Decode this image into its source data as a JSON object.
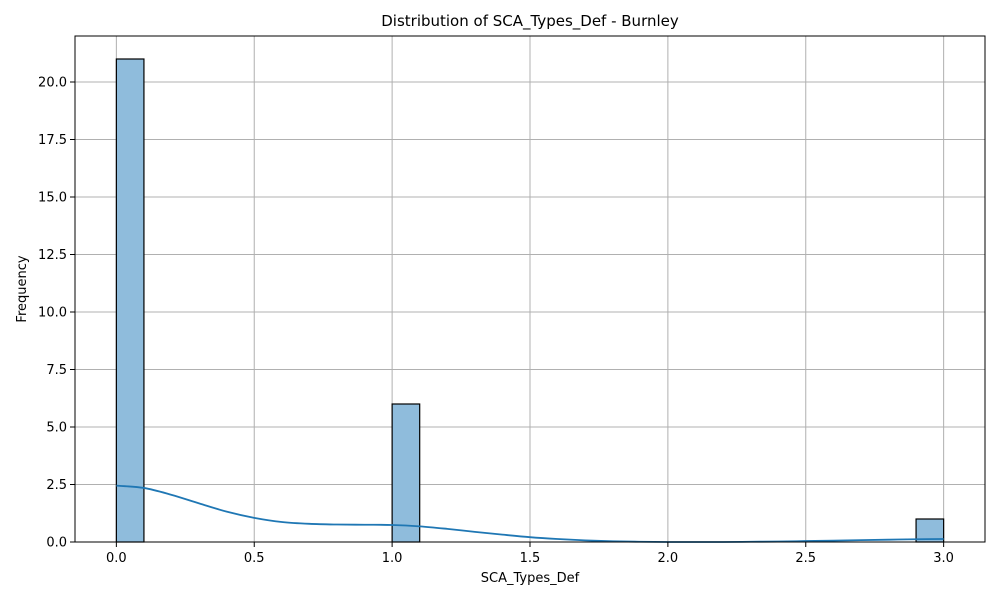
{
  "chart_data": {
    "type": "bar",
    "title": "Distribution of SCA_Types_Def - Burnley",
    "xlabel": "SCA_Types_Def",
    "ylabel": "Frequency",
    "xlim": [
      -0.15,
      3.15
    ],
    "ylim": [
      0,
      22
    ],
    "grid": true,
    "x_ticks": [
      0.0,
      0.5,
      1.0,
      1.5,
      2.0,
      2.5,
      3.0
    ],
    "x_tick_labels": [
      "0.0",
      "0.5",
      "1.0",
      "1.5",
      "2.0",
      "2.5",
      "3.0"
    ],
    "y_ticks": [
      0.0,
      2.5,
      5.0,
      7.5,
      10.0,
      12.5,
      15.0,
      17.5,
      20.0
    ],
    "y_tick_labels": [
      "0.0",
      "2.5",
      "5.0",
      "7.5",
      "10.0",
      "12.5",
      "15.0",
      "17.5",
      "20.0"
    ],
    "bins": [
      {
        "x0": 0.0,
        "x1": 0.1,
        "count": 21
      },
      {
        "x0": 1.0,
        "x1": 1.1,
        "count": 6
      },
      {
        "x0": 2.9,
        "x1": 3.0,
        "count": 1
      }
    ],
    "kde": {
      "x": [
        0.0,
        0.1,
        0.2,
        0.3,
        0.4,
        0.5,
        0.6,
        0.7,
        0.8,
        0.9,
        1.0,
        1.1,
        1.2,
        1.3,
        1.4,
        1.5,
        1.6,
        1.7,
        1.8,
        1.9,
        2.0,
        2.1,
        2.2,
        2.3,
        2.4,
        2.5,
        2.6,
        2.7,
        2.8,
        2.9,
        3.0
      ],
      "y": [
        2.45,
        2.35,
        2.05,
        1.68,
        1.32,
        1.05,
        0.87,
        0.79,
        0.76,
        0.75,
        0.74,
        0.68,
        0.57,
        0.44,
        0.32,
        0.21,
        0.13,
        0.07,
        0.03,
        0.01,
        0.0,
        0.0,
        0.0,
        0.01,
        0.02,
        0.04,
        0.06,
        0.08,
        0.1,
        0.12,
        0.13
      ]
    },
    "colors": {
      "bar_fill": "#8fbcdc",
      "bar_edge": "#000000",
      "kde_line": "#1f77b4"
    }
  }
}
